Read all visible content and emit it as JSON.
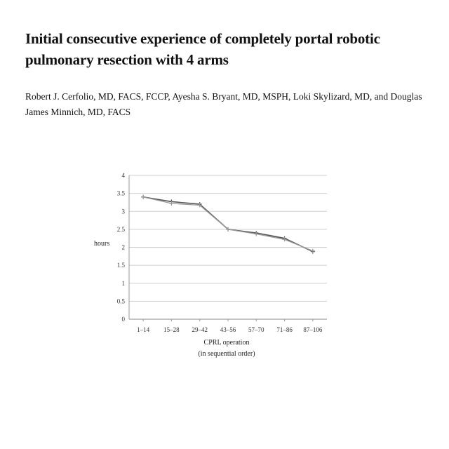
{
  "paper": {
    "title": "Initial consecutive experience of completely portal robotic pulmonary resection with 4 arms",
    "authors": "Robert J. Cerfolio, MD, FACS, FCCP, Ayesha S. Bryant, MD, MSPH, Loki Skylizard, MD, and Douglas James Minnich, MD, FACS"
  },
  "chart_data": {
    "type": "line",
    "categories": [
      "1–14",
      "15–28",
      "29–42",
      "43–56",
      "57–70",
      "71–86",
      "87–106"
    ],
    "series": [
      {
        "values": [
          3.4,
          3.27,
          3.2,
          2.5,
          2.4,
          2.25,
          1.88
        ]
      },
      {
        "values": [
          3.4,
          3.22,
          3.17,
          2.5,
          2.37,
          2.22,
          1.9
        ]
      }
    ],
    "ylabel": "hours",
    "xlabel": "CPRL operation",
    "xlabel2": "(in sequential order)",
    "ylim": [
      0,
      4
    ],
    "yticks": [
      "0",
      "0.5",
      "1",
      "1.5",
      "2",
      "2.5",
      "3",
      "3.5",
      "4"
    ],
    "grid": true,
    "line_colors": [
      "#555555",
      "#9a9a9a"
    ]
  }
}
